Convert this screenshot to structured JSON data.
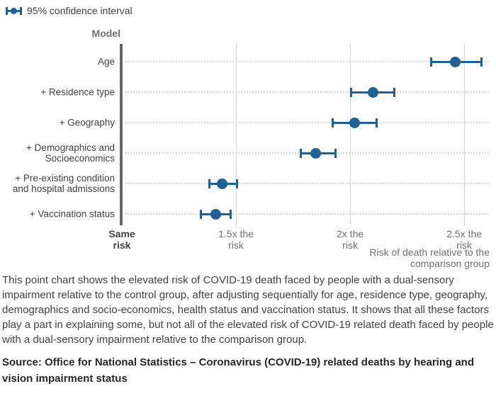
{
  "legend": {
    "label": "95% confidence interval",
    "icon": "ci-errorbar-icon"
  },
  "chart_data": {
    "type": "scatter",
    "subtype": "dot-plot-with-95ci-error-bars",
    "title": "Model",
    "xlabel": "Risk of death relative to the comparison group",
    "xlabel_lines": [
      "Risk of death relative to the",
      "comparison group"
    ],
    "ylabel": "Model",
    "xlim": [
      1,
      2.63
    ],
    "grid": "vertical-gridlines-and-dotted-row-guides",
    "legend_position": "top-left",
    "categories": [
      "Age",
      "+ Residence type",
      "+ Geography",
      "+ Demographics and Socioeconomics",
      "+ Pre-existing condition and hospital admissions",
      "+ Vaccination status"
    ],
    "category_label_lines": [
      [
        "Age"
      ],
      [
        "+ Residence type"
      ],
      [
        "+ Geography"
      ],
      [
        "+ Demographics and",
        "Socioeconomics"
      ],
      [
        "+ Pre-existing condition",
        "and hospital admissions"
      ],
      [
        "+ Vaccination status"
      ]
    ],
    "series": [
      {
        "name": "95% confidence interval",
        "points": [
          {
            "category": "Age",
            "value": 2.46,
            "ci_low": 2.35,
            "ci_high": 2.58
          },
          {
            "category": "+ Residence type",
            "value": 2.1,
            "ci_low": 2.0,
            "ci_high": 2.2
          },
          {
            "category": "+ Geography",
            "value": 2.02,
            "ci_low": 1.92,
            "ci_high": 2.12
          },
          {
            "category": "+ Demographics and Socioeconomics",
            "value": 1.85,
            "ci_low": 1.78,
            "ci_high": 1.94
          },
          {
            "category": "+ Pre-existing condition and hospital admissions",
            "value": 1.44,
            "ci_low": 1.38,
            "ci_high": 1.51
          },
          {
            "category": "+ Vaccination status",
            "value": 1.41,
            "ci_low": 1.34,
            "ci_high": 1.48
          }
        ]
      }
    ],
    "x_ticks": [
      {
        "value": 1,
        "label": "Same risk",
        "lines": [
          "Same",
          "risk"
        ],
        "emphasis": true
      },
      {
        "value": 1.5,
        "label": "1.5x the risk",
        "lines": [
          "1.5x the",
          "risk"
        ],
        "emphasis": false
      },
      {
        "value": 2,
        "label": "2x the risk",
        "lines": [
          "2x the",
          "risk"
        ],
        "emphasis": false
      },
      {
        "value": 2.5,
        "label": "2.5x the risk",
        "lines": [
          "2.5x the",
          "risk"
        ],
        "emphasis": false
      }
    ],
    "colors": {
      "point": "#206095",
      "axis_line": "#666666",
      "gridline": "#d5d5d5",
      "row_dots": "#d9d9d9",
      "tick_label": "#707071",
      "tick_label_emphasis": "#414042"
    }
  },
  "description": "This point chart shows the elevated risk of COVID-19 death faced by people with a dual-sensory impairment relative to the control group, after adjusting sequentially for age, residence type, geography, demographics and socio-economics, health status and vaccination status. It shows that all these factors play a part in explaining some, but not all of the elevated risk of COVID-19 related death faced by people with a dual-sensory impairment relative to the comparison group.",
  "source": "Source: Office for National Statistics – Coronavirus (COVID-19) related deaths by hearing and vision impairment status"
}
